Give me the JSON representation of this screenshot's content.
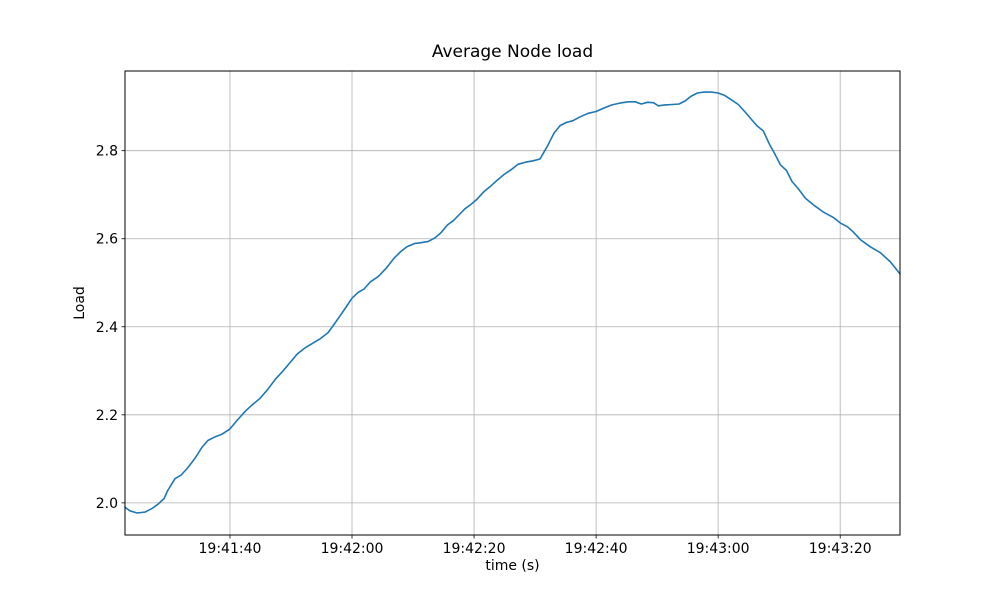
{
  "chart_data": {
    "type": "line",
    "title": "Average Node load",
    "xlabel": "time (s)",
    "ylabel": "Load",
    "grid": true,
    "legend": null,
    "background_color": "#ffffff",
    "line_color": "#1f77b4",
    "grid_color": "#b0b0b0",
    "spine_color": "#000000",
    "x_axis": {
      "unit": "clock time (HH:MM:SS)",
      "range_seconds": [
        0,
        127
      ],
      "ticks": [
        {
          "seconds": 17.2,
          "label": "19:41:40"
        },
        {
          "seconds": 37.2,
          "label": "19:42:00"
        },
        {
          "seconds": 57.2,
          "label": "19:42:20"
        },
        {
          "seconds": 77.2,
          "label": "19:42:40"
        },
        {
          "seconds": 97.2,
          "label": "19:43:00"
        },
        {
          "seconds": 117.2,
          "label": "19:43:20"
        }
      ]
    },
    "y_axis": {
      "range": [
        1.927,
        2.981
      ],
      "ticks": [
        {
          "value": 2.0,
          "label": "2.0"
        },
        {
          "value": 2.2,
          "label": "2.2"
        },
        {
          "value": 2.4,
          "label": "2.4"
        },
        {
          "value": 2.6,
          "label": "2.6"
        },
        {
          "value": 2.8,
          "label": "2.8"
        }
      ]
    },
    "series": [
      {
        "points": [
          [
            0.0,
            1.99
          ],
          [
            0.8,
            1.982
          ],
          [
            2.0,
            1.977
          ],
          [
            3.3,
            1.979
          ],
          [
            4.4,
            1.987
          ],
          [
            5.4,
            1.997
          ],
          [
            6.4,
            2.01
          ],
          [
            7.0,
            2.028
          ],
          [
            8.2,
            2.055
          ],
          [
            9.2,
            2.063
          ],
          [
            10.3,
            2.08
          ],
          [
            11.5,
            2.102
          ],
          [
            12.6,
            2.126
          ],
          [
            13.6,
            2.142
          ],
          [
            14.8,
            2.15
          ],
          [
            15.9,
            2.156
          ],
          [
            17.2,
            2.168
          ],
          [
            18.4,
            2.188
          ],
          [
            19.7,
            2.208
          ],
          [
            20.8,
            2.222
          ],
          [
            22.1,
            2.237
          ],
          [
            23.4,
            2.258
          ],
          [
            24.6,
            2.28
          ],
          [
            25.9,
            2.3
          ],
          [
            27.0,
            2.318
          ],
          [
            28.2,
            2.338
          ],
          [
            29.5,
            2.352
          ],
          [
            30.8,
            2.363
          ],
          [
            32.0,
            2.373
          ],
          [
            33.3,
            2.387
          ],
          [
            34.6,
            2.412
          ],
          [
            35.9,
            2.438
          ],
          [
            37.2,
            2.465
          ],
          [
            38.2,
            2.478
          ],
          [
            39.2,
            2.486
          ],
          [
            40.2,
            2.502
          ],
          [
            41.5,
            2.514
          ],
          [
            42.8,
            2.533
          ],
          [
            44.1,
            2.556
          ],
          [
            45.2,
            2.571
          ],
          [
            46.2,
            2.582
          ],
          [
            47.4,
            2.589
          ],
          [
            48.5,
            2.591
          ],
          [
            49.7,
            2.594
          ],
          [
            50.8,
            2.602
          ],
          [
            51.8,
            2.614
          ],
          [
            52.8,
            2.631
          ],
          [
            53.8,
            2.641
          ],
          [
            54.8,
            2.655
          ],
          [
            55.7,
            2.668
          ],
          [
            56.7,
            2.678
          ],
          [
            57.7,
            2.69
          ],
          [
            58.9,
            2.708
          ],
          [
            59.8,
            2.718
          ],
          [
            61.0,
            2.733
          ],
          [
            62.1,
            2.746
          ],
          [
            63.3,
            2.757
          ],
          [
            64.4,
            2.769
          ],
          [
            65.7,
            2.774
          ],
          [
            66.9,
            2.777
          ],
          [
            68.0,
            2.781
          ],
          [
            69.2,
            2.81
          ],
          [
            70.3,
            2.84
          ],
          [
            71.3,
            2.857
          ],
          [
            72.3,
            2.864
          ],
          [
            73.4,
            2.868
          ],
          [
            74.6,
            2.877
          ],
          [
            75.9,
            2.885
          ],
          [
            77.2,
            2.889
          ],
          [
            78.5,
            2.897
          ],
          [
            79.8,
            2.904
          ],
          [
            81.1,
            2.908
          ],
          [
            82.5,
            2.911
          ],
          [
            83.6,
            2.911
          ],
          [
            84.6,
            2.906
          ],
          [
            85.6,
            2.91
          ],
          [
            86.6,
            2.909
          ],
          [
            87.4,
            2.902
          ],
          [
            88.5,
            2.904
          ],
          [
            89.7,
            2.905
          ],
          [
            90.8,
            2.906
          ],
          [
            91.8,
            2.913
          ],
          [
            92.8,
            2.924
          ],
          [
            93.8,
            2.931
          ],
          [
            94.9,
            2.933
          ],
          [
            96.1,
            2.933
          ],
          [
            97.2,
            2.931
          ],
          [
            98.2,
            2.926
          ],
          [
            99.3,
            2.916
          ],
          [
            100.5,
            2.905
          ],
          [
            101.6,
            2.888
          ],
          [
            102.6,
            2.872
          ],
          [
            103.6,
            2.856
          ],
          [
            104.6,
            2.845
          ],
          [
            105.7,
            2.812
          ],
          [
            106.4,
            2.795
          ],
          [
            107.4,
            2.768
          ],
          [
            108.4,
            2.755
          ],
          [
            109.3,
            2.73
          ],
          [
            110.3,
            2.714
          ],
          [
            111.5,
            2.692
          ],
          [
            112.8,
            2.677
          ],
          [
            114.4,
            2.661
          ],
          [
            116.1,
            2.648
          ],
          [
            117.2,
            2.636
          ],
          [
            118.4,
            2.627
          ],
          [
            119.3,
            2.616
          ],
          [
            120.5,
            2.598
          ],
          [
            122.1,
            2.582
          ],
          [
            123.8,
            2.568
          ],
          [
            125.4,
            2.548
          ],
          [
            127.0,
            2.52
          ]
        ]
      }
    ]
  }
}
